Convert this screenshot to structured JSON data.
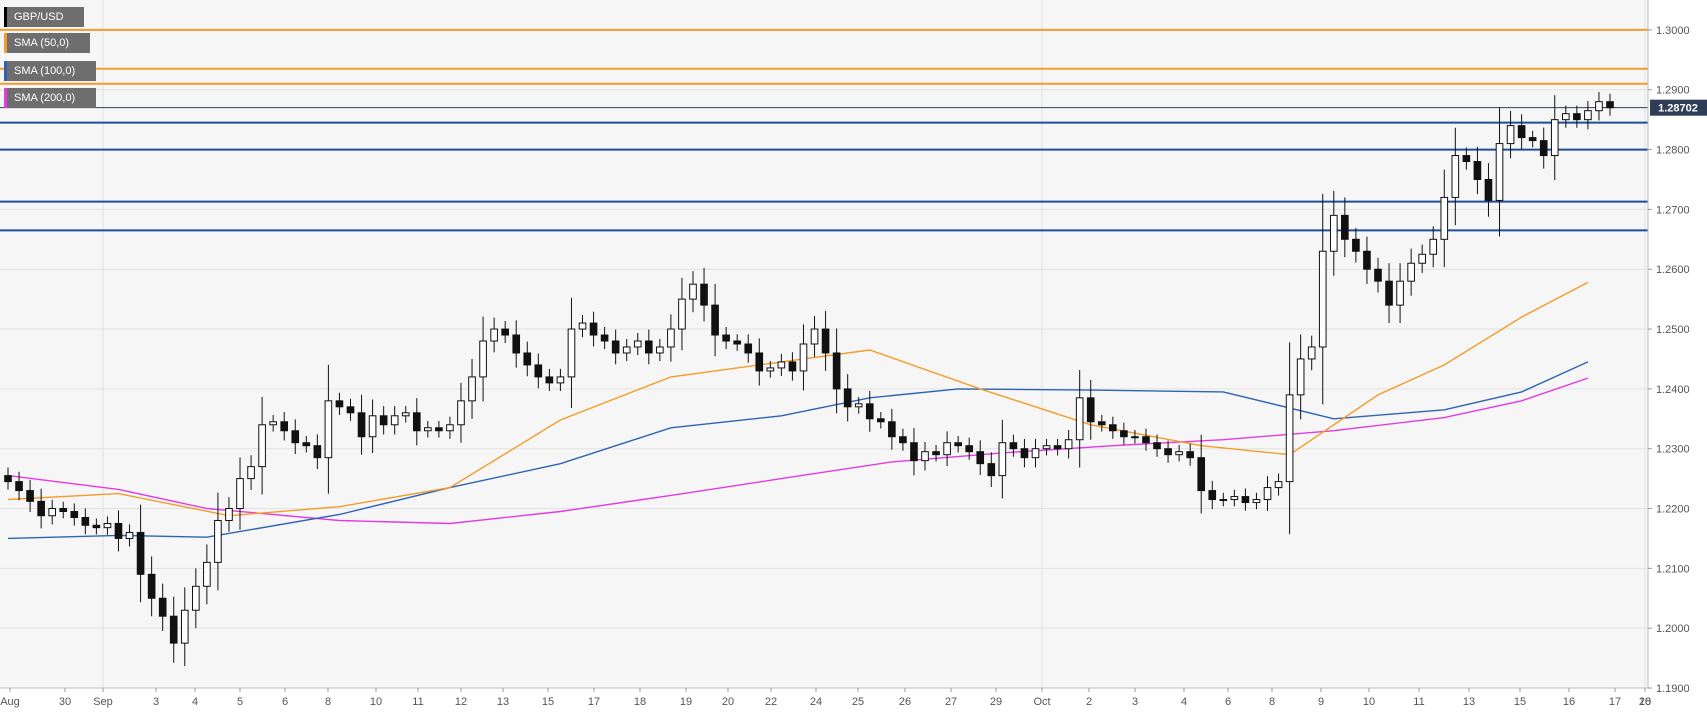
{
  "chart_data": {
    "type": "candlestick",
    "symbol": "GBP/USD",
    "legend": [
      {
        "label": "GBP/USD",
        "color": "#000000"
      },
      {
        "label": "SMA (50,0)",
        "color": "#f39c2a"
      },
      {
        "label": "SMA (100,0)",
        "color": "#2e63b3"
      },
      {
        "label": "SMA (200,0)",
        "color": "#e33be0"
      }
    ],
    "ylim": [
      1.19,
      1.305
    ],
    "y_ticks": [
      "1.3000",
      "1.2900",
      "1.2800",
      "1.2700",
      "1.2600",
      "1.2500",
      "1.2400",
      "1.2300",
      "1.2200",
      "1.2100",
      "1.2000",
      "1.1900"
    ],
    "x_ticks": [
      "Aug",
      "30",
      "Sep",
      "3",
      "4",
      "5",
      "6",
      "8",
      "10",
      "11",
      "12",
      "13",
      "15",
      "17",
      "18",
      "19",
      "20",
      "22",
      "24",
      "25",
      "26",
      "27",
      "29",
      "Oct",
      "2",
      "3",
      "4",
      "6",
      "8",
      "9",
      "10",
      "11",
      "13",
      "15",
      "16",
      "17",
      "18",
      "20"
    ],
    "last_price": "1.28702",
    "resistance_levels": [
      1.3,
      1.2935,
      1.291
    ],
    "support_levels": [
      1.2845,
      1.28,
      1.2713,
      1.2665
    ],
    "current_price_line": 1.287,
    "grid": true,
    "candle_closes": [
      1.2245,
      1.223,
      1.2212,
      1.2188,
      1.22,
      1.2195,
      1.2185,
      1.2172,
      1.2168,
      1.2175,
      1.215,
      1.216,
      1.209,
      1.205,
      1.202,
      1.1975,
      1.203,
      1.207,
      1.211,
      1.218,
      1.22,
      1.225,
      1.227,
      1.234,
      1.2345,
      1.233,
      1.231,
      1.2305,
      1.2285,
      1.238,
      1.237,
      1.236,
      1.232,
      1.2355,
      1.234,
      1.2355,
      1.236,
      1.233,
      1.2335,
      1.233,
      1.234,
      1.238,
      1.242,
      1.248,
      1.25,
      1.249,
      1.246,
      1.244,
      1.242,
      1.241,
      1.242,
      1.25,
      1.251,
      1.249,
      1.248,
      1.246,
      1.247,
      1.248,
      1.246,
      1.247,
      1.25,
      1.255,
      1.2575,
      1.254,
      1.249,
      1.248,
      1.2475,
      1.246,
      1.243,
      1.2435,
      1.2445,
      1.243,
      1.2475,
      1.25,
      1.246,
      1.24,
      1.237,
      1.2375,
      1.235,
      1.2345,
      1.232,
      1.231,
      1.228,
      1.2295,
      1.229,
      1.231,
      1.2305,
      1.2295,
      1.2275,
      1.2255,
      1.231,
      1.23,
      1.2285,
      1.23,
      1.2305,
      1.23,
      1.2315,
      1.2385,
      1.2345,
      1.234,
      1.233,
      1.232,
      1.232,
      1.231,
      1.23,
      1.229,
      1.2295,
      1.2285,
      1.223,
      1.2215,
      1.2215,
      1.222,
      1.221,
      1.2215,
      1.2235,
      1.2245,
      1.239,
      1.245,
      1.247,
      1.263,
      1.269,
      1.265,
      1.263,
      1.26,
      1.258,
      1.254,
      1.258,
      1.261,
      1.2625,
      1.265,
      1.272,
      1.279,
      1.278,
      1.275,
      1.2715,
      1.281,
      1.284,
      1.282,
      1.2815,
      1.279,
      1.285,
      1.286,
      1.285,
      1.2865,
      1.288,
      1.287
    ],
    "sma50": [
      [
        0,
        1.2215
      ],
      [
        10,
        1.2225
      ],
      [
        20,
        1.2188
      ],
      [
        30,
        1.2203
      ],
      [
        40,
        1.2235
      ],
      [
        50,
        1.2348
      ],
      [
        60,
        1.242
      ],
      [
        70,
        1.2445
      ],
      [
        78,
        1.2465
      ],
      [
        88,
        1.24
      ],
      [
        98,
        1.234
      ],
      [
        108,
        1.2305
      ],
      [
        116,
        1.229
      ],
      [
        124,
        1.239
      ],
      [
        130,
        1.244
      ],
      [
        137,
        1.252
      ],
      [
        143,
        1.2578
      ]
    ],
    "sma100": [
      [
        0,
        1.215
      ],
      [
        10,
        1.2155
      ],
      [
        18,
        1.2152
      ],
      [
        30,
        1.219
      ],
      [
        40,
        1.2235
      ],
      [
        50,
        1.2275
      ],
      [
        60,
        1.2335
      ],
      [
        70,
        1.2355
      ],
      [
        78,
        1.2385
      ],
      [
        86,
        1.24
      ],
      [
        98,
        1.2398
      ],
      [
        110,
        1.2395
      ],
      [
        120,
        1.235
      ],
      [
        130,
        1.2365
      ],
      [
        137,
        1.2395
      ],
      [
        143,
        1.2445
      ]
    ],
    "sma200": [
      [
        0,
        1.2255
      ],
      [
        10,
        1.2232
      ],
      [
        18,
        1.22
      ],
      [
        30,
        1.218
      ],
      [
        40,
        1.2175
      ],
      [
        50,
        1.2195
      ],
      [
        60,
        1.2222
      ],
      [
        70,
        1.225
      ],
      [
        80,
        1.2278
      ],
      [
        90,
        1.2293
      ],
      [
        100,
        1.2305
      ],
      [
        110,
        1.2315
      ],
      [
        120,
        1.233
      ],
      [
        130,
        1.2352
      ],
      [
        137,
        1.238
      ],
      [
        143,
        1.2418
      ]
    ]
  }
}
